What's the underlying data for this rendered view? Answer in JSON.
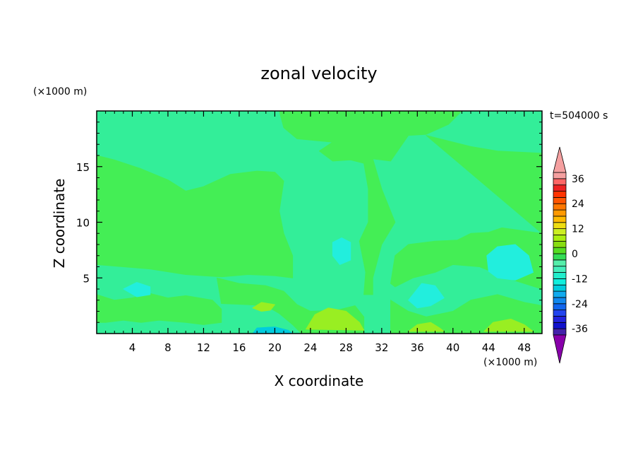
{
  "chart_data": {
    "type": "heatmap",
    "title": "zonal velocity",
    "xlabel": "X coordinate",
    "ylabel": "Z coordinate",
    "x_unit": "(×1000 m)",
    "y_unit": "(×1000 m)",
    "time_label": "t=504000 s",
    "xlim": [
      0,
      50
    ],
    "ylim": [
      0,
      20
    ],
    "x_ticks": [
      4,
      8,
      12,
      16,
      20,
      24,
      28,
      32,
      36,
      40,
      44,
      48
    ],
    "y_ticks": [
      5,
      10,
      15
    ],
    "colorbar": {
      "levels": [
        -42,
        -39,
        -36,
        -33,
        -30,
        -27,
        -24,
        -21,
        -18,
        -15,
        -12,
        -9,
        -6,
        -3,
        0,
        3,
        6,
        9,
        12,
        15,
        18,
        21,
        24,
        27,
        30,
        33,
        36,
        39,
        42
      ],
      "labeled_ticks": [
        36,
        24,
        12,
        0,
        -12,
        -24,
        -36
      ],
      "tick_labels": [
        "36",
        "24",
        "12",
        "0",
        "-12",
        "-24",
        "-36"
      ],
      "colors": [
        "#8800aa",
        "#4422aa",
        "#1111cc",
        "#2222dd",
        "#2244ee",
        "#1166ee",
        "#1188ee",
        "#11aaee",
        "#00ccdd",
        "#11eedd",
        "#22eecc",
        "#44eebb",
        "#55eeaa",
        "#33dd55",
        "#55dd22",
        "#88dd11",
        "#aaee11",
        "#ccee22",
        "#eedd11",
        "#ffbb00",
        "#ff9900",
        "#ff7700",
        "#ff5500",
        "#ff3300",
        "#ee2222",
        "#ff6666",
        "#f5a0a0"
      ],
      "extend_low_color": "#8800aa",
      "extend_high_color": "#f5a0a0"
    },
    "fields": {
      "background_value": 0,
      "background_color": "#33ee99",
      "regions": [
        {
          "name": "positive-upper-left",
          "value": 2,
          "color": "#44ee55",
          "points": [
            [
              0,
              16
            ],
            [
              2,
              15.6
            ],
            [
              5,
              14.8
            ],
            [
              8,
              13.8
            ],
            [
              10,
              12.8
            ],
            [
              12,
              13.2
            ],
            [
              15,
              14.3
            ],
            [
              18,
              14.6
            ],
            [
              20,
              14.5
            ],
            [
              21,
              13.7
            ],
            [
              20.5,
              11
            ],
            [
              21,
              9
            ],
            [
              22,
              7
            ],
            [
              22,
              5
            ],
            [
              20,
              5.2
            ],
            [
              17,
              5.3
            ],
            [
              14,
              5.1
            ],
            [
              10,
              5.3
            ],
            [
              6,
              5.8
            ],
            [
              3,
              6
            ],
            [
              0,
              6.2
            ]
          ]
        },
        {
          "name": "positive-upper-right",
          "value": 2,
          "color": "#44ee55",
          "points": [
            [
              20.5,
              20
            ],
            [
              41,
              20
            ],
            [
              39.5,
              18.8
            ],
            [
              37,
              17.9
            ],
            [
              35,
              17.8
            ],
            [
              33,
              15.5
            ],
            [
              31,
              15.7
            ],
            [
              32,
              13
            ],
            [
              33.5,
              10
            ],
            [
              32,
              8
            ],
            [
              31,
              5
            ],
            [
              31,
              3.5
            ],
            [
              30,
              3.5
            ],
            [
              30.2,
              5.5
            ],
            [
              29.5,
              8.3
            ],
            [
              30.5,
              10
            ],
            [
              30.5,
              13
            ],
            [
              30,
              15.3
            ],
            [
              28.5,
              15.6
            ],
            [
              26.5,
              15.5
            ],
            [
              25,
              16.4
            ],
            [
              26.5,
              17.2
            ],
            [
              22.5,
              17.5
            ],
            [
              21,
              18.5
            ]
          ]
        },
        {
          "name": "positive-right-mid",
          "value": 2,
          "color": "#44ee55",
          "points": [
            [
              37,
              17.8
            ],
            [
              42,
              16.8
            ],
            [
              45,
              16.4
            ],
            [
              50,
              16.2
            ],
            [
              50,
              4
            ],
            [
              46,
              5
            ],
            [
              43,
              6
            ],
            [
              40,
              6.2
            ],
            [
              38,
              5.5
            ],
            [
              35.5,
              5
            ],
            [
              33.5,
              4.2
            ],
            [
              33,
              4.5
            ],
            [
              33.5,
              7
            ],
            [
              35,
              8
            ],
            [
              38,
              8.3
            ],
            [
              40.5,
              8.4
            ],
            [
              42,
              9
            ],
            [
              44,
              9.1
            ],
            [
              45.5,
              9.5
            ],
            [
              50,
              9
            ]
          ]
        },
        {
          "name": "positive-lower-left",
          "value": 2,
          "color": "#44ee55",
          "points": [
            [
              0,
              3.5
            ],
            [
              2,
              3
            ],
            [
              4,
              3.2
            ],
            [
              6,
              3.6
            ],
            [
              8,
              3.2
            ],
            [
              10,
              3.4
            ],
            [
              13,
              3
            ],
            [
              14,
              2.2
            ],
            [
              14,
              1
            ],
            [
              12,
              0.8
            ],
            [
              10,
              1
            ],
            [
              7,
              1.2
            ],
            [
              5,
              1
            ],
            [
              3,
              1.2
            ],
            [
              1,
              1
            ],
            [
              0,
              1
            ]
          ]
        },
        {
          "name": "positive-lower-center",
          "value": 2,
          "color": "#44ee55",
          "points": [
            [
              13.5,
              5
            ],
            [
              16,
              4.5
            ],
            [
              19,
              4.3
            ],
            [
              21,
              3.8
            ],
            [
              22.5,
              2.6
            ],
            [
              24,
              2
            ],
            [
              27,
              2.1
            ],
            [
              29,
              2.5
            ],
            [
              30,
              1.5
            ],
            [
              30,
              0
            ],
            [
              23,
              0
            ],
            [
              22,
              0.8
            ],
            [
              20.5,
              1.8
            ],
            [
              19,
              2.5
            ],
            [
              17,
              2.6
            ],
            [
              14,
              2.7
            ]
          ]
        },
        {
          "name": "positive-lower-right",
          "value": 2,
          "color": "#44ee55",
          "points": [
            [
              33,
              3
            ],
            [
              35,
              2
            ],
            [
              37,
              1.5
            ],
            [
              40,
              2
            ],
            [
              42,
              3
            ],
            [
              45,
              3.5
            ],
            [
              48,
              2.8
            ],
            [
              50,
              2.5
            ],
            [
              50,
              0
            ],
            [
              33,
              0
            ]
          ]
        },
        {
          "name": "weak-positive-a",
          "value": 6,
          "color": "#99ee22",
          "points": [
            [
              23.5,
              0.4
            ],
            [
              24.5,
              1.7
            ],
            [
              26,
              2.3
            ],
            [
              28,
              2
            ],
            [
              29.5,
              1
            ],
            [
              30,
              0.3
            ]
          ]
        },
        {
          "name": "weak-positive-b",
          "value": 6,
          "color": "#99ee22",
          "points": [
            [
              35,
              0.2
            ],
            [
              36,
              0.8
            ],
            [
              37.5,
              1
            ],
            [
              38.5,
              0.5
            ],
            [
              39,
              0.2
            ]
          ]
        },
        {
          "name": "weak-positive-c",
          "value": 6,
          "color": "#99ee22",
          "points": [
            [
              43.5,
              0.2
            ],
            [
              44.5,
              1
            ],
            [
              46.5,
              1.3
            ],
            [
              48,
              0.8
            ],
            [
              49,
              0.2
            ]
          ]
        },
        {
          "name": "weak-positive-d",
          "value": 6,
          "color": "#99ee22",
          "points": [
            [
              17.5,
              2.3
            ],
            [
              18.5,
              2.8
            ],
            [
              20,
              2.6
            ],
            [
              19.5,
              2.1
            ],
            [
              18.5,
              2
            ]
          ]
        },
        {
          "name": "negative-center",
          "value": -6,
          "color": "#22eedd",
          "points": [
            [
              26.5,
              8.2
            ],
            [
              27.5,
              8.6
            ],
            [
              28.5,
              8.2
            ],
            [
              28.5,
              6.6
            ],
            [
              27.3,
              6.2
            ],
            [
              26.5,
              7
            ]
          ]
        },
        {
          "name": "negative-right",
          "value": -6,
          "color": "#22eedd",
          "points": [
            [
              43.8,
              7
            ],
            [
              45,
              7.8
            ],
            [
              47,
              8
            ],
            [
              48.5,
              7
            ],
            [
              49,
              5.5
            ],
            [
              47,
              4.8
            ],
            [
              45,
              5
            ],
            [
              44,
              5.6
            ]
          ]
        },
        {
          "name": "negative-right-low",
          "value": -6,
          "color": "#22eedd",
          "points": [
            [
              35,
              3
            ],
            [
              36.5,
              4.5
            ],
            [
              38,
              4.3
            ],
            [
              39,
              3.2
            ],
            [
              37.5,
              2.5
            ],
            [
              36,
              2.3
            ]
          ]
        },
        {
          "name": "negative-left",
          "value": -6,
          "color": "#22eedd",
          "points": [
            [
              3,
              4
            ],
            [
              4.5,
              4.6
            ],
            [
              6,
              4.2
            ],
            [
              6,
              3.5
            ],
            [
              4.5,
              3.3
            ]
          ]
        },
        {
          "name": "negative-bottom",
          "value": -9,
          "color": "#00ccdd",
          "points": [
            [
              17.5,
              0
            ],
            [
              18,
              0.5
            ],
            [
              20,
              0.6
            ],
            [
              21.5,
              0.3
            ],
            [
              22,
              0
            ]
          ]
        }
      ]
    }
  }
}
